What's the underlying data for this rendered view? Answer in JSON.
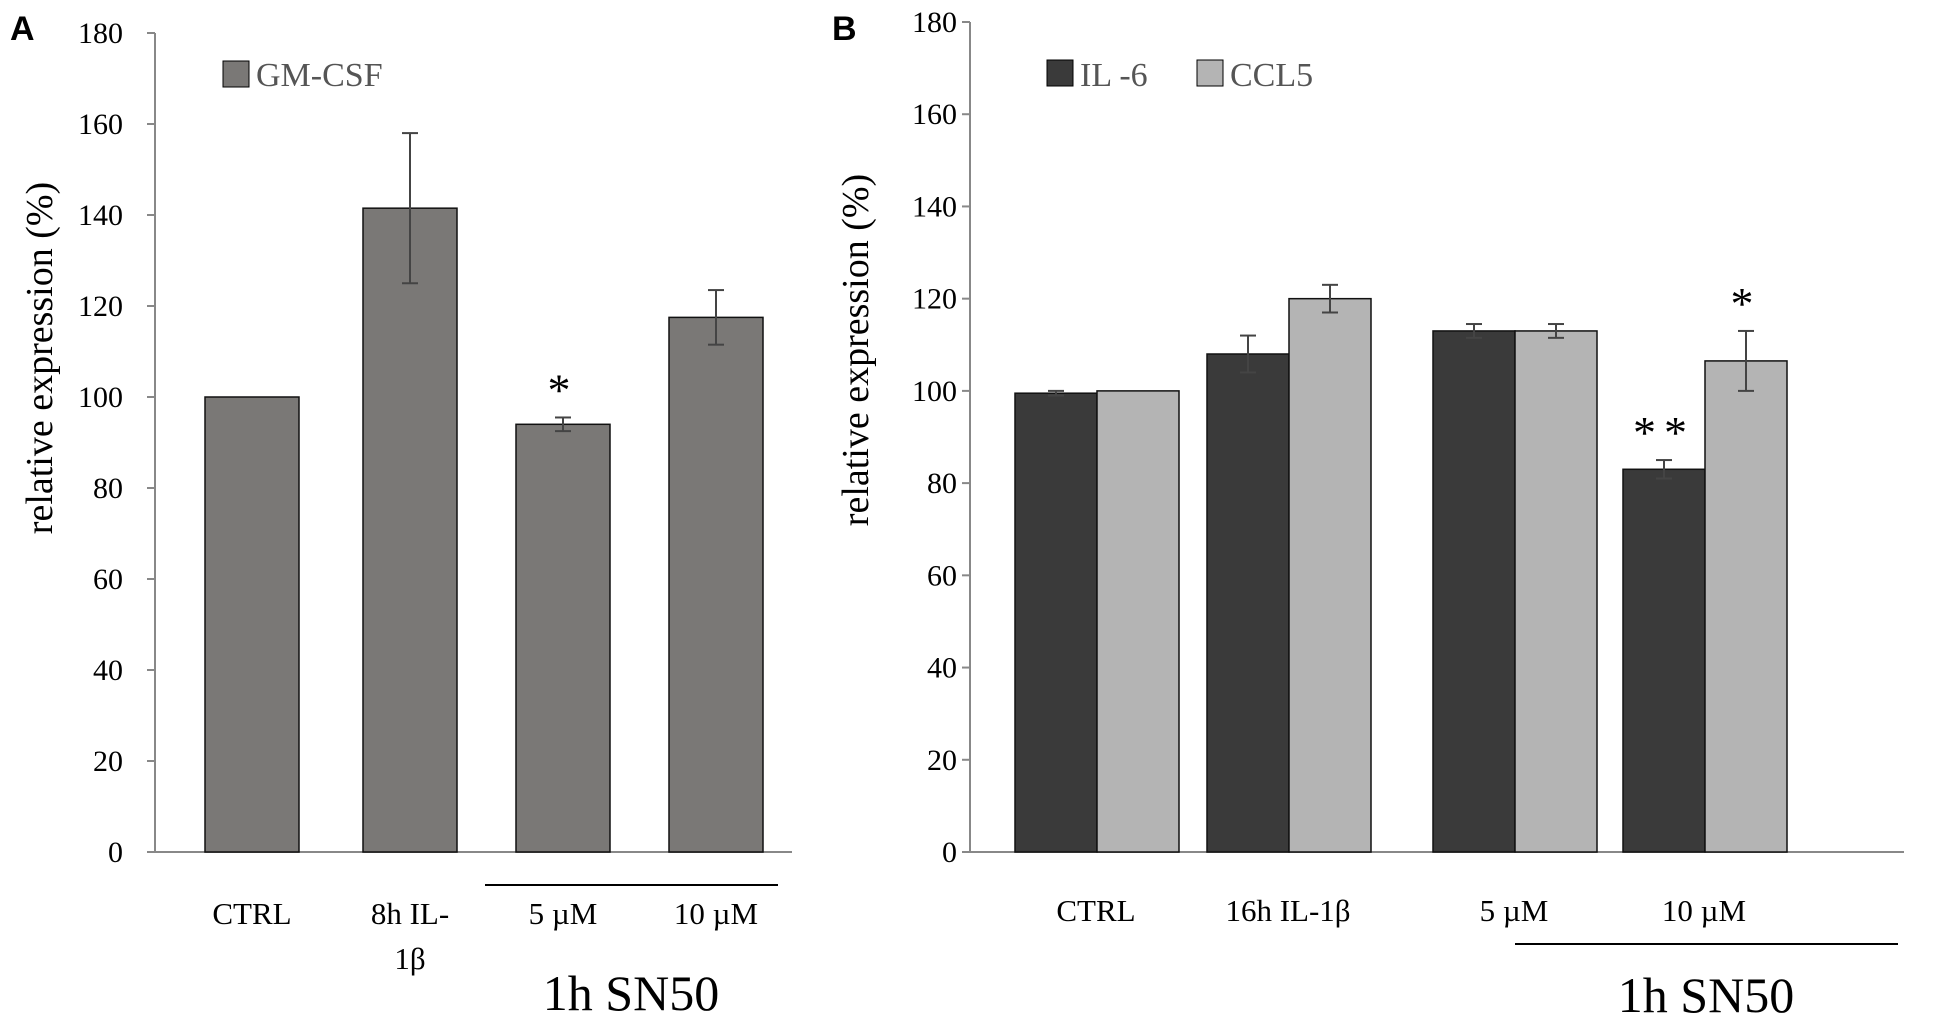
{
  "chart_data": [
    {
      "panel": "A",
      "type": "bar",
      "ylabel": "relative expression (%)",
      "ylim": [
        0,
        180
      ],
      "yticks": [
        "0",
        "20",
        "40",
        "60",
        "80",
        "100",
        "120",
        "140",
        "160",
        "180"
      ],
      "categories": [
        "CTRL",
        "8h IL-\n1β",
        "5 µM",
        "10 µM"
      ],
      "series": [
        {
          "name": "GM-CSF",
          "color": "#7a7876",
          "values": [
            100,
            141.5,
            94,
            117.5
          ],
          "errors": [
            0,
            16.5,
            1.5,
            6
          ],
          "annotations": [
            "",
            "",
            "*",
            ""
          ]
        }
      ],
      "group_label": "1h SN50",
      "group_span": [
        2,
        3
      ]
    },
    {
      "panel": "B",
      "type": "bar",
      "ylabel": "relative expression (%)",
      "ylim": [
        0,
        180
      ],
      "yticks": [
        "0",
        "20",
        "40",
        "60",
        "80",
        "100",
        "120",
        "140",
        "160",
        "180"
      ],
      "categories": [
        "CTRL",
        "16h IL-1β",
        "5 µM",
        "10 µM"
      ],
      "series": [
        {
          "name": "IL -6",
          "color": "#3a3a3a",
          "values": [
            99.5,
            108,
            113,
            83
          ],
          "errors": [
            0.5,
            4,
            1.5,
            2
          ],
          "annotations": [
            "",
            "",
            "",
            "**"
          ]
        },
        {
          "name": "CCL5",
          "color": "#b4b4b4",
          "values": [
            100,
            120,
            113,
            106.5
          ],
          "errors": [
            0,
            3,
            1.5,
            6.5
          ],
          "annotations": [
            "",
            "",
            "",
            "*"
          ]
        }
      ],
      "group_label": "1h SN50",
      "group_span": [
        2,
        3
      ]
    }
  ]
}
